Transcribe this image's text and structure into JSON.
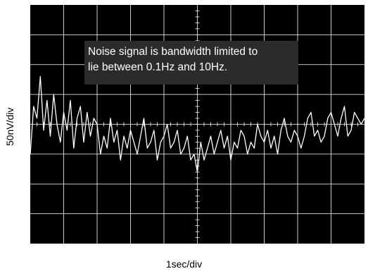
{
  "chart_data": {
    "type": "line",
    "xlabel": "1sec/div",
    "ylabel": "50nV/div",
    "annotation": [
      "Noise signal is bandwidth limited to",
      "lie between 0.1Hz and 10Hz."
    ],
    "x_divisions": 10,
    "y_divisions": 8,
    "grid": true,
    "colors": {
      "background": "#000000",
      "grid": "#ffffff",
      "trace": "#ffffff",
      "annotation_box": "#2b2b2b"
    },
    "series": [
      {
        "x": [
          0.0,
          0.1,
          0.2,
          0.3,
          0.4,
          0.5,
          0.6,
          0.7,
          0.8,
          0.9,
          1.0,
          1.1,
          1.2,
          1.3,
          1.4,
          1.5,
          1.6,
          1.7,
          1.8,
          1.9,
          2.0,
          2.1,
          2.2,
          2.3,
          2.4,
          2.5,
          2.6,
          2.7,
          2.8,
          2.9,
          3.0,
          3.1,
          3.2,
          3.3,
          3.4,
          3.5,
          3.6,
          3.7,
          3.8,
          3.9,
          4.0,
          4.1,
          4.2,
          4.3,
          4.4,
          4.5,
          4.6,
          4.7,
          4.8,
          4.9,
          5.0,
          5.1,
          5.2,
          5.3,
          5.4,
          5.5,
          5.6,
          5.7,
          5.8,
          5.9,
          6.0,
          6.1,
          6.2,
          6.3,
          6.4,
          6.5,
          6.6,
          6.7,
          6.8,
          6.9,
          7.0,
          7.1,
          7.2,
          7.3,
          7.4,
          7.5,
          7.6,
          7.7,
          7.8,
          7.9,
          8.0,
          8.1,
          8.2,
          8.3,
          8.4,
          8.5,
          8.6,
          8.7,
          8.8,
          8.9,
          9.0,
          9.1,
          9.2,
          9.3,
          9.4,
          9.5,
          9.6,
          9.7,
          9.8,
          9.9,
          10.0
        ],
        "values": [
          -50,
          30,
          10,
          80,
          -10,
          40,
          -20,
          50,
          0,
          -30,
          20,
          -10,
          40,
          -40,
          10,
          30,
          -30,
          20,
          -20,
          10,
          0,
          -50,
          -20,
          -40,
          10,
          -30,
          -10,
          -60,
          -20,
          -40,
          -10,
          -30,
          -50,
          -20,
          10,
          -40,
          -30,
          -10,
          -60,
          -30,
          -20,
          0,
          -40,
          -30,
          -10,
          -50,
          -40,
          -20,
          -60,
          -50,
          -80,
          -30,
          -60,
          -40,
          -20,
          -50,
          -30,
          -10,
          -40,
          -20,
          -60,
          -30,
          -40,
          -10,
          -20,
          -50,
          -30,
          -40,
          0,
          -20,
          -30,
          -10,
          -40,
          -20,
          -50,
          -10,
          10,
          -20,
          -30,
          -10,
          -20,
          -40,
          -20,
          10,
          20,
          -20,
          -10,
          -30,
          -20,
          10,
          20,
          0,
          -20,
          10,
          30,
          -20,
          -10,
          20,
          10,
          0,
          10
        ]
      }
    ]
  }
}
